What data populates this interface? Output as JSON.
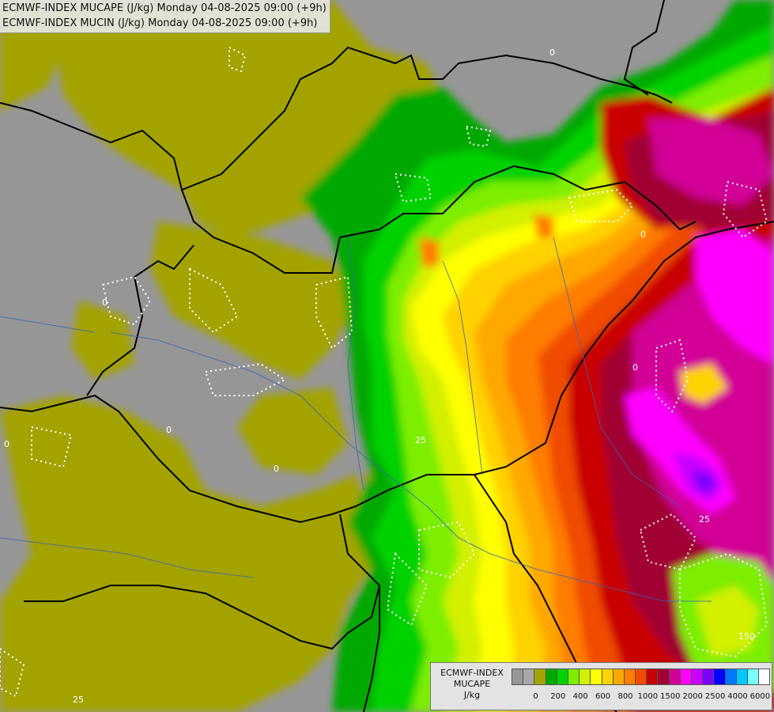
{
  "titles": {
    "line1": "ECMWF-INDEX MUCAPE (J/kg) Monday 04-08-2025 09:00 (+9h)",
    "line2": "ECMWF-INDEX MUCIN (J/kg) Monday 04-08-2025 09:00 (+9h)"
  },
  "map": {
    "contour_labels": [
      "0",
      "0",
      "0",
      "0",
      "0",
      "0",
      "0",
      "25",
      "25",
      "25",
      "150"
    ]
  },
  "legend": {
    "title_line1": "ECMWF-INDEX",
    "title_line2": "MUCAPE",
    "title_line3": "J/kg",
    "colors": [
      "#969696",
      "#a8a8a8",
      "#a3a300",
      "#00a800",
      "#00d200",
      "#7dee00",
      "#d2f000",
      "#ffff00",
      "#ffd200",
      "#ffa800",
      "#ff7d00",
      "#f04b00",
      "#c80000",
      "#a00032",
      "#d20096",
      "#ff00ff",
      "#c800ff",
      "#7d00ff",
      "#0000ff",
      "#0078ff",
      "#00c8ff",
      "#78ffff",
      "#ffffff"
    ],
    "tick_labels": [
      "0",
      "200",
      "400",
      "600",
      "800",
      "1000",
      "1500",
      "2000",
      "2500",
      "4000",
      "6000"
    ]
  }
}
